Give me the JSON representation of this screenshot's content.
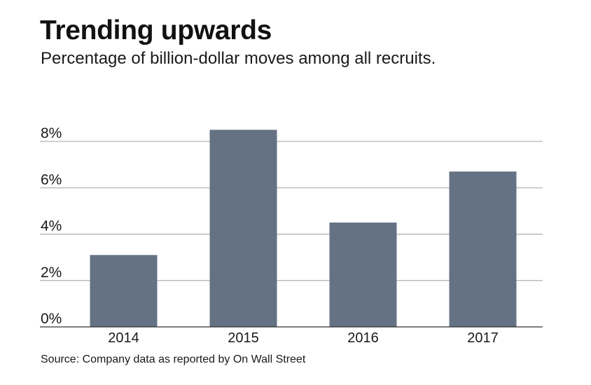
{
  "chart_data": {
    "type": "bar",
    "title": "Trending upwards",
    "subtitle": "Percentage of billion-dollar moves among all recruits.",
    "source": "Source: Company data as reported by On Wall Street",
    "categories": [
      "2014",
      "2015",
      "2016",
      "2017"
    ],
    "values": [
      3.1,
      8.5,
      4.5,
      6.7
    ],
    "ylim": [
      0,
      8
    ],
    "yticks": [
      0,
      2,
      4,
      6,
      8
    ],
    "ytick_labels": [
      "0%",
      "2%",
      "4%",
      "6%",
      "8%"
    ],
    "xlabel": "",
    "ylabel": "",
    "grid": true,
    "colors": {
      "bar": "#647284",
      "grid": "#9aa0a6",
      "axis": "#333333",
      "text": "#1a1a1a"
    }
  }
}
